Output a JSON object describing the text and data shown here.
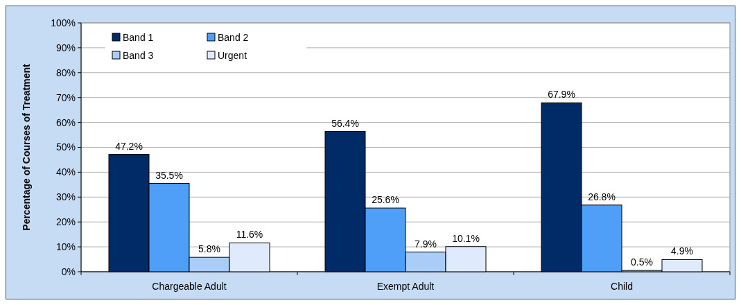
{
  "chart_data": {
    "type": "bar",
    "ylabel": "Percentage of Courses of Treatment",
    "categories": [
      "Chargeable Adult",
      "Exempt Adult",
      "Child"
    ],
    "series": [
      {
        "name": "Band 1",
        "color": "#002b66",
        "values": [
          47.2,
          56.4,
          67.9
        ],
        "value_labels": [
          "47.2%",
          "56.4%",
          "67.9%"
        ]
      },
      {
        "name": "Band 2",
        "color": "#4f9ef7",
        "values": [
          35.5,
          25.6,
          26.8
        ],
        "value_labels": [
          "35.5%",
          "25.6%",
          "26.8%"
        ]
      },
      {
        "name": "Band 3",
        "color": "#a9cdf7",
        "values": [
          5.8,
          7.9,
          0.5
        ],
        "value_labels": [
          "5.8%",
          "7.9%",
          "0.5%"
        ]
      },
      {
        "name": "Urgent",
        "color": "#dfeafc",
        "values": [
          11.6,
          10.1,
          4.9
        ],
        "value_labels": [
          "11.6%",
          "10.1%",
          "4.9%"
        ]
      }
    ],
    "ylim": [
      0,
      100
    ],
    "yticks": [
      {
        "value": 0,
        "label": "0%"
      },
      {
        "value": 10,
        "label": "10%"
      },
      {
        "value": 20,
        "label": "20%"
      },
      {
        "value": 30,
        "label": "30%"
      },
      {
        "value": 40,
        "label": "40%"
      },
      {
        "value": 50,
        "label": "50%"
      },
      {
        "value": 60,
        "label": "60%"
      },
      {
        "value": 70,
        "label": "70%"
      },
      {
        "value": 80,
        "label": "80%"
      },
      {
        "value": 90,
        "label": "90%"
      },
      {
        "value": 100,
        "label": "100%"
      }
    ],
    "grid": "y",
    "legend": "top left"
  }
}
